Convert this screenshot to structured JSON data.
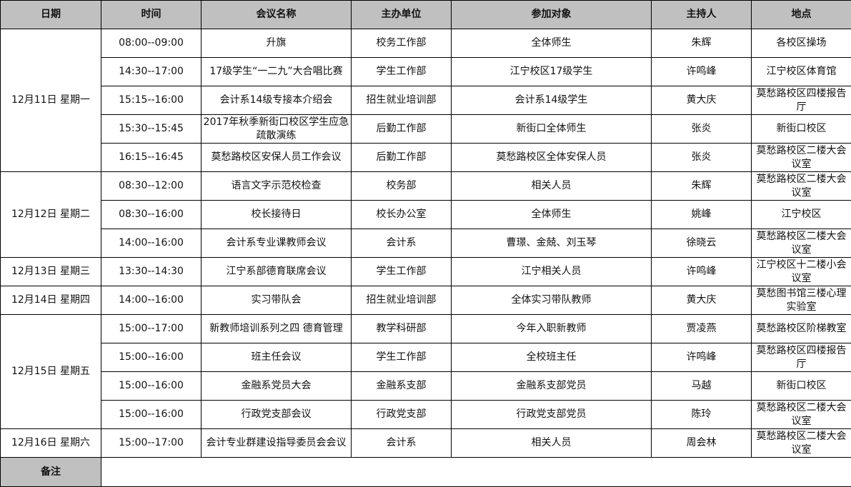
{
  "headers": [
    "日期",
    "时间",
    "会议名称",
    "主办单位",
    "参加对象",
    "主持人",
    "地点"
  ],
  "days": [
    {
      "date": "12月11日 星期一",
      "meetings": [
        {
          "time": "08:00--09:00",
          "name": "升旗",
          "organizer": "校务工作部",
          "attendees": "全体师生",
          "host": "朱辉",
          "location": "各校区操场"
        },
        {
          "time": "14:30--17:00",
          "name": "17级学生“一二九”大合唱比赛",
          "organizer": "学生工作部",
          "attendees": "江宁校区17级学生",
          "host": "许鸣峰",
          "location": "江宁校区体育馆"
        },
        {
          "time": "15:15--16:00",
          "name": "会计系14级专接本介绍会",
          "organizer": "招生就业培训部",
          "attendees": "会计系14级学生",
          "host": "黄大庆",
          "location": "莫愁路校区四楼报告厅"
        },
        {
          "time": "15:30--15:45",
          "name": "2017年秋季新街口校区学生应急疏散演练",
          "organizer": "后勤工作部",
          "attendees": "新街口全体师生",
          "host": "张炎",
          "location": "新街口校区"
        },
        {
          "time": "16:15--16:45",
          "name": "莫愁路校区安保人员工作会议",
          "organizer": "后勤工作部",
          "attendees": "莫愁路校区全体安保人员",
          "host": "张炎",
          "location": "莫愁路校区二楼大会议室"
        }
      ]
    },
    {
      "date": "12月12日 星期二",
      "meetings": [
        {
          "time": "08:30--12:00",
          "name": "语言文字示范校检查",
          "organizer": "校务部",
          "attendees": "相关人员",
          "host": "朱辉",
          "location": "莫愁路校区二楼大会议室"
        },
        {
          "time": "08:30--16:00",
          "name": "校长接待日",
          "organizer": "校长办公室",
          "attendees": "全体师生",
          "host": "姚峰",
          "location": "江宁校区"
        },
        {
          "time": "14:00--16:00",
          "name": "会计系专业课教师会议",
          "organizer": "会计系",
          "attendees": "曹璟、金兢、刘玉琴",
          "host": "徐晓云",
          "location": "莫愁路校区二楼大会议室"
        }
      ]
    },
    {
      "date": "12月13日 星期三",
      "meetings": [
        {
          "time": "13:30--14:30",
          "name": "江宁系部德育联席会议",
          "organizer": "学生工作部",
          "attendees": "江宁相关人员",
          "host": "许鸣峰",
          "location": "江宁校区十二楼小会议室"
        }
      ]
    },
    {
      "date": "12月14日 星期四",
      "meetings": [
        {
          "time": "14:00--16:00",
          "name": "实习带队会",
          "organizer": "招生就业培训部",
          "attendees": "全体实习带队教师",
          "host": "黄大庆",
          "location": "莫愁图书馆三楼心理实验室"
        }
      ]
    },
    {
      "date": "12月15日 星期五",
      "meetings": [
        {
          "time": "15:00--17:00",
          "name": "新教师培训系列之四 德育管理",
          "organizer": "教学科研部",
          "attendees": "今年入职新教师",
          "host": "贾凌燕",
          "location": "莫愁路校区阶梯教室"
        },
        {
          "time": "15:00--16:00",
          "name": "班主任会议",
          "organizer": "学生工作部",
          "attendees": "全校班主任",
          "host": "许鸣峰",
          "location": "莫愁路校区四楼报告厅"
        },
        {
          "time": "15:00--16:00",
          "name": "金融系党员大会",
          "organizer": "金融系支部",
          "attendees": "金融系支部党员",
          "host": "马越",
          "location": "新街口校区"
        },
        {
          "time": "15:00--16:00",
          "name": "行政党支部会议",
          "organizer": "行政党支部",
          "attendees": "行政党支部党员",
          "host": "陈玲",
          "location": "莫愁路校区二楼大会议室"
        }
      ]
    },
    {
      "date": "12月16日 星期六",
      "meetings": [
        {
          "time": "15:00--17:00",
          "name": "会计专业群建设指导委员会会议",
          "organizer": "会计系",
          "attendees": "相关人员",
          "host": "周会林",
          "location": "莫愁路校区二楼大会议室"
        }
      ]
    }
  ],
  "remarks": {
    "label": "备注",
    "value": ""
  },
  "colors": {
    "header_bg": "#c0c0c0",
    "border": "#000000"
  }
}
